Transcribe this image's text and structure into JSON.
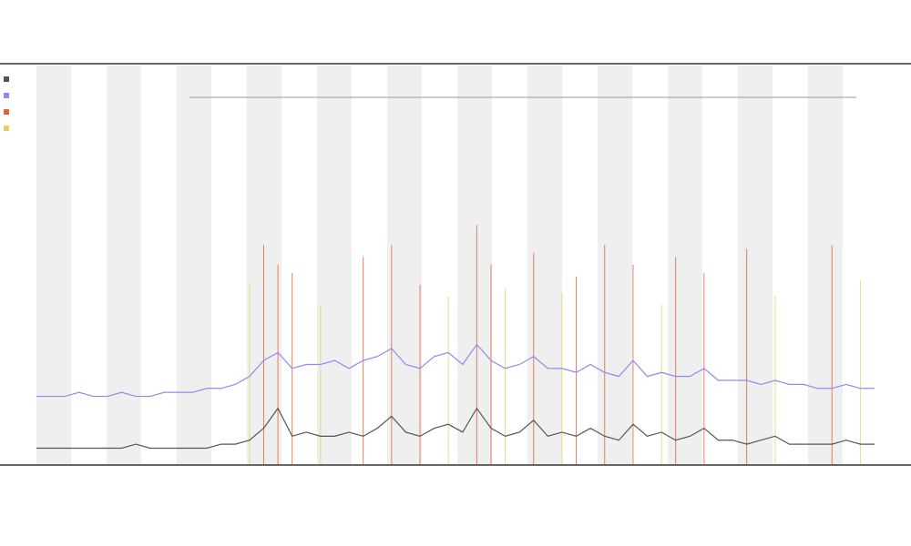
{
  "chart_data": {
    "type": "line",
    "x": [
      0,
      1,
      2,
      3,
      4,
      5,
      6,
      7,
      8,
      9,
      10,
      11,
      12,
      13,
      14,
      15,
      16,
      17,
      18,
      19,
      20,
      21,
      22,
      23,
      24,
      25,
      26,
      27,
      28,
      29,
      30,
      31,
      32,
      33,
      34,
      35,
      36,
      37,
      38,
      39,
      40,
      41,
      42,
      43,
      44,
      45,
      46,
      47,
      48,
      49,
      50,
      51,
      52,
      53,
      54,
      55,
      56,
      57,
      58,
      59
    ],
    "xlim": [
      0,
      59
    ],
    "ylim": [
      0,
      100
    ],
    "series": [
      {
        "mark": "line",
        "color": "#555555",
        "values": [
          4,
          4,
          4,
          4,
          4,
          4,
          4,
          5,
          4,
          4,
          4,
          4,
          4,
          5,
          5,
          6,
          9,
          14,
          7,
          8,
          7,
          7,
          8,
          7,
          9,
          12,
          8,
          7,
          9,
          10,
          8,
          14,
          9,
          7,
          8,
          11,
          7,
          8,
          7,
          9,
          7,
          6,
          10,
          7,
          8,
          6,
          7,
          9,
          6,
          6,
          5,
          6,
          7,
          5,
          5,
          5,
          5,
          6,
          5,
          5
        ]
      },
      {
        "mark": "line",
        "color": "#8c8cf0",
        "values": [
          17,
          17,
          17,
          18,
          17,
          17,
          18,
          17,
          17,
          18,
          18,
          18,
          19,
          19,
          20,
          22,
          26,
          28,
          24,
          25,
          25,
          26,
          24,
          26,
          27,
          29,
          25,
          24,
          27,
          28,
          25,
          30,
          26,
          24,
          25,
          27,
          24,
          24,
          23,
          25,
          23,
          22,
          26,
          22,
          23,
          22,
          22,
          24,
          21,
          21,
          21,
          20,
          21,
          20,
          20,
          19,
          19,
          20,
          19,
          19
        ]
      },
      {
        "mark": "spike",
        "color": "#e06040",
        "values": [
          null,
          null,
          null,
          null,
          null,
          null,
          null,
          null,
          null,
          null,
          null,
          null,
          null,
          null,
          null,
          null,
          55,
          50,
          48,
          null,
          null,
          null,
          null,
          52,
          null,
          55,
          null,
          45,
          null,
          null,
          null,
          60,
          50,
          null,
          null,
          53,
          null,
          null,
          47,
          null,
          55,
          null,
          50,
          null,
          null,
          52,
          null,
          48,
          null,
          null,
          54,
          null,
          null,
          null,
          null,
          null,
          55,
          null,
          null,
          null
        ]
      },
      {
        "mark": "spike",
        "color": "#e8d060",
        "values": [
          null,
          null,
          null,
          null,
          null,
          null,
          null,
          null,
          null,
          null,
          null,
          null,
          null,
          null,
          null,
          45,
          null,
          null,
          null,
          null,
          40,
          null,
          null,
          null,
          null,
          null,
          null,
          null,
          null,
          42,
          null,
          null,
          null,
          44,
          null,
          null,
          null,
          43,
          null,
          null,
          null,
          null,
          null,
          null,
          40,
          null,
          null,
          null,
          null,
          null,
          null,
          null,
          42,
          null,
          null,
          null,
          null,
          null,
          46,
          null
        ]
      }
    ]
  }
}
